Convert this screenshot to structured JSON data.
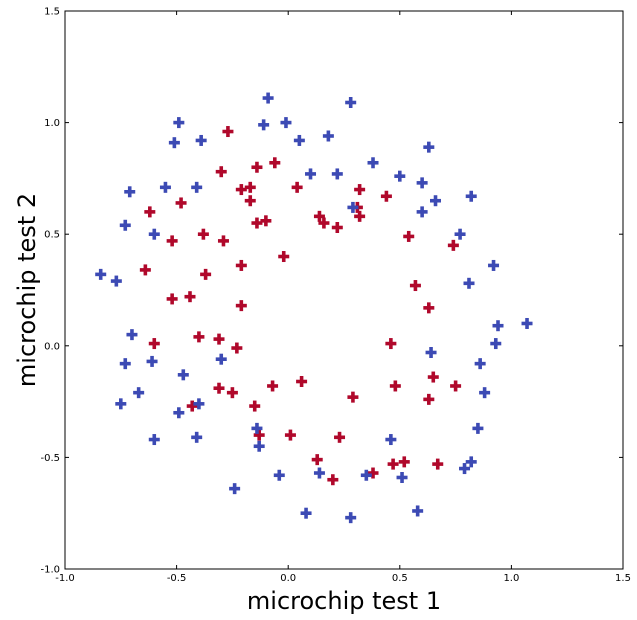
{
  "chart_data": {
    "type": "scatter",
    "title": "",
    "xlabel": "microchip test 1",
    "ylabel": "microchip test 2",
    "xlim": [
      -1.0,
      1.5
    ],
    "ylim": [
      -1.0,
      1.5
    ],
    "xticks": [
      "-1.0",
      "-0.5",
      "0.0",
      "0.5",
      "1.0",
      "1.5"
    ],
    "yticks": [
      "-1.0",
      "-0.5",
      "0.0",
      "0.5",
      "1.0",
      "1.5"
    ],
    "xtick_values": [
      -1.0,
      -0.5,
      0.0,
      0.5,
      1.0,
      1.5
    ],
    "ytick_values": [
      -1.0,
      -0.5,
      0.0,
      0.5,
      1.0,
      1.5
    ],
    "grid": false,
    "legend": "none",
    "marker": "plus",
    "series": [
      {
        "color": "#b0082b",
        "points": [
          [
            -0.27,
            0.96
          ],
          [
            -0.3,
            0.78
          ],
          [
            -0.14,
            0.8
          ],
          [
            -0.06,
            0.82
          ],
          [
            -0.21,
            0.7
          ],
          [
            -0.17,
            0.71
          ],
          [
            -0.17,
            0.65
          ],
          [
            -0.14,
            0.55
          ],
          [
            -0.1,
            0.56
          ],
          [
            -0.62,
            0.6
          ],
          [
            -0.48,
            0.64
          ],
          [
            -0.52,
            0.47
          ],
          [
            -0.38,
            0.5
          ],
          [
            -0.29,
            0.47
          ],
          [
            -0.64,
            0.34
          ],
          [
            -0.37,
            0.32
          ],
          [
            -0.21,
            0.36
          ],
          [
            0.04,
            0.71
          ],
          [
            0.14,
            0.58
          ],
          [
            0.16,
            0.55
          ],
          [
            0.22,
            0.53
          ],
          [
            0.31,
            0.62
          ],
          [
            0.32,
            0.7
          ],
          [
            0.32,
            0.58
          ],
          [
            0.44,
            0.67
          ],
          [
            0.54,
            0.49
          ],
          [
            0.74,
            0.45
          ],
          [
            -0.52,
            0.21
          ],
          [
            -0.44,
            0.22
          ],
          [
            -0.21,
            0.18
          ],
          [
            -0.02,
            0.4
          ],
          [
            0.57,
            0.27
          ],
          [
            0.63,
            0.17
          ],
          [
            -0.6,
            0.01
          ],
          [
            -0.4,
            0.04
          ],
          [
            -0.31,
            0.03
          ],
          [
            -0.23,
            -0.01
          ],
          [
            0.46,
            0.01
          ],
          [
            -0.31,
            -0.19
          ],
          [
            -0.25,
            -0.21
          ],
          [
            -0.43,
            -0.27
          ],
          [
            -0.15,
            -0.27
          ],
          [
            -0.07,
            -0.18
          ],
          [
            0.06,
            -0.16
          ],
          [
            0.29,
            -0.23
          ],
          [
            0.48,
            -0.18
          ],
          [
            0.63,
            -0.24
          ],
          [
            0.65,
            -0.14
          ],
          [
            0.75,
            -0.18
          ],
          [
            -0.13,
            -0.4
          ],
          [
            0.01,
            -0.4
          ],
          [
            0.23,
            -0.41
          ],
          [
            0.13,
            -0.51
          ],
          [
            0.2,
            -0.6
          ],
          [
            0.38,
            -0.57
          ],
          [
            0.47,
            -0.53
          ],
          [
            0.52,
            -0.52
          ],
          [
            0.67,
            -0.53
          ]
        ]
      },
      {
        "color": "#3c4ab4",
        "points": [
          [
            -0.09,
            1.11
          ],
          [
            -0.11,
            0.99
          ],
          [
            -0.01,
            1.0
          ],
          [
            -0.49,
            1.0
          ],
          [
            0.28,
            1.09
          ],
          [
            -0.51,
            0.91
          ],
          [
            -0.39,
            0.92
          ],
          [
            0.05,
            0.92
          ],
          [
            0.18,
            0.94
          ],
          [
            0.63,
            0.89
          ],
          [
            0.38,
            0.82
          ],
          [
            0.1,
            0.77
          ],
          [
            0.22,
            0.77
          ],
          [
            0.5,
            0.76
          ],
          [
            0.6,
            0.73
          ],
          [
            -0.71,
            0.69
          ],
          [
            -0.55,
            0.71
          ],
          [
            -0.41,
            0.71
          ],
          [
            0.29,
            0.62
          ],
          [
            0.66,
            0.65
          ],
          [
            0.6,
            0.6
          ],
          [
            0.82,
            0.67
          ],
          [
            -0.73,
            0.54
          ],
          [
            -0.6,
            0.5
          ],
          [
            0.77,
            0.5
          ],
          [
            -0.84,
            0.32
          ],
          [
            -0.77,
            0.29
          ],
          [
            0.92,
            0.36
          ],
          [
            0.81,
            0.28
          ],
          [
            -0.7,
            0.05
          ],
          [
            0.94,
            0.09
          ],
          [
            1.07,
            0.1
          ],
          [
            0.93,
            0.01
          ],
          [
            -0.73,
            -0.08
          ],
          [
            -0.61,
            -0.07
          ],
          [
            -0.3,
            -0.06
          ],
          [
            0.64,
            -0.03
          ],
          [
            0.86,
            -0.08
          ],
          [
            -0.47,
            -0.13
          ],
          [
            -0.75,
            -0.26
          ],
          [
            -0.67,
            -0.21
          ],
          [
            -0.4,
            -0.26
          ],
          [
            -0.49,
            -0.3
          ],
          [
            0.88,
            -0.21
          ],
          [
            -0.6,
            -0.42
          ],
          [
            -0.41,
            -0.41
          ],
          [
            -0.14,
            -0.37
          ],
          [
            -0.13,
            -0.45
          ],
          [
            0.46,
            -0.42
          ],
          [
            0.85,
            -0.37
          ],
          [
            0.14,
            -0.57
          ],
          [
            0.35,
            -0.58
          ],
          [
            0.51,
            -0.59
          ],
          [
            0.79,
            -0.55
          ],
          [
            0.82,
            -0.52
          ],
          [
            -0.04,
            -0.58
          ],
          [
            -0.24,
            -0.64
          ],
          [
            0.08,
            -0.75
          ],
          [
            0.28,
            -0.77
          ],
          [
            0.58,
            -0.74
          ]
        ]
      }
    ]
  }
}
